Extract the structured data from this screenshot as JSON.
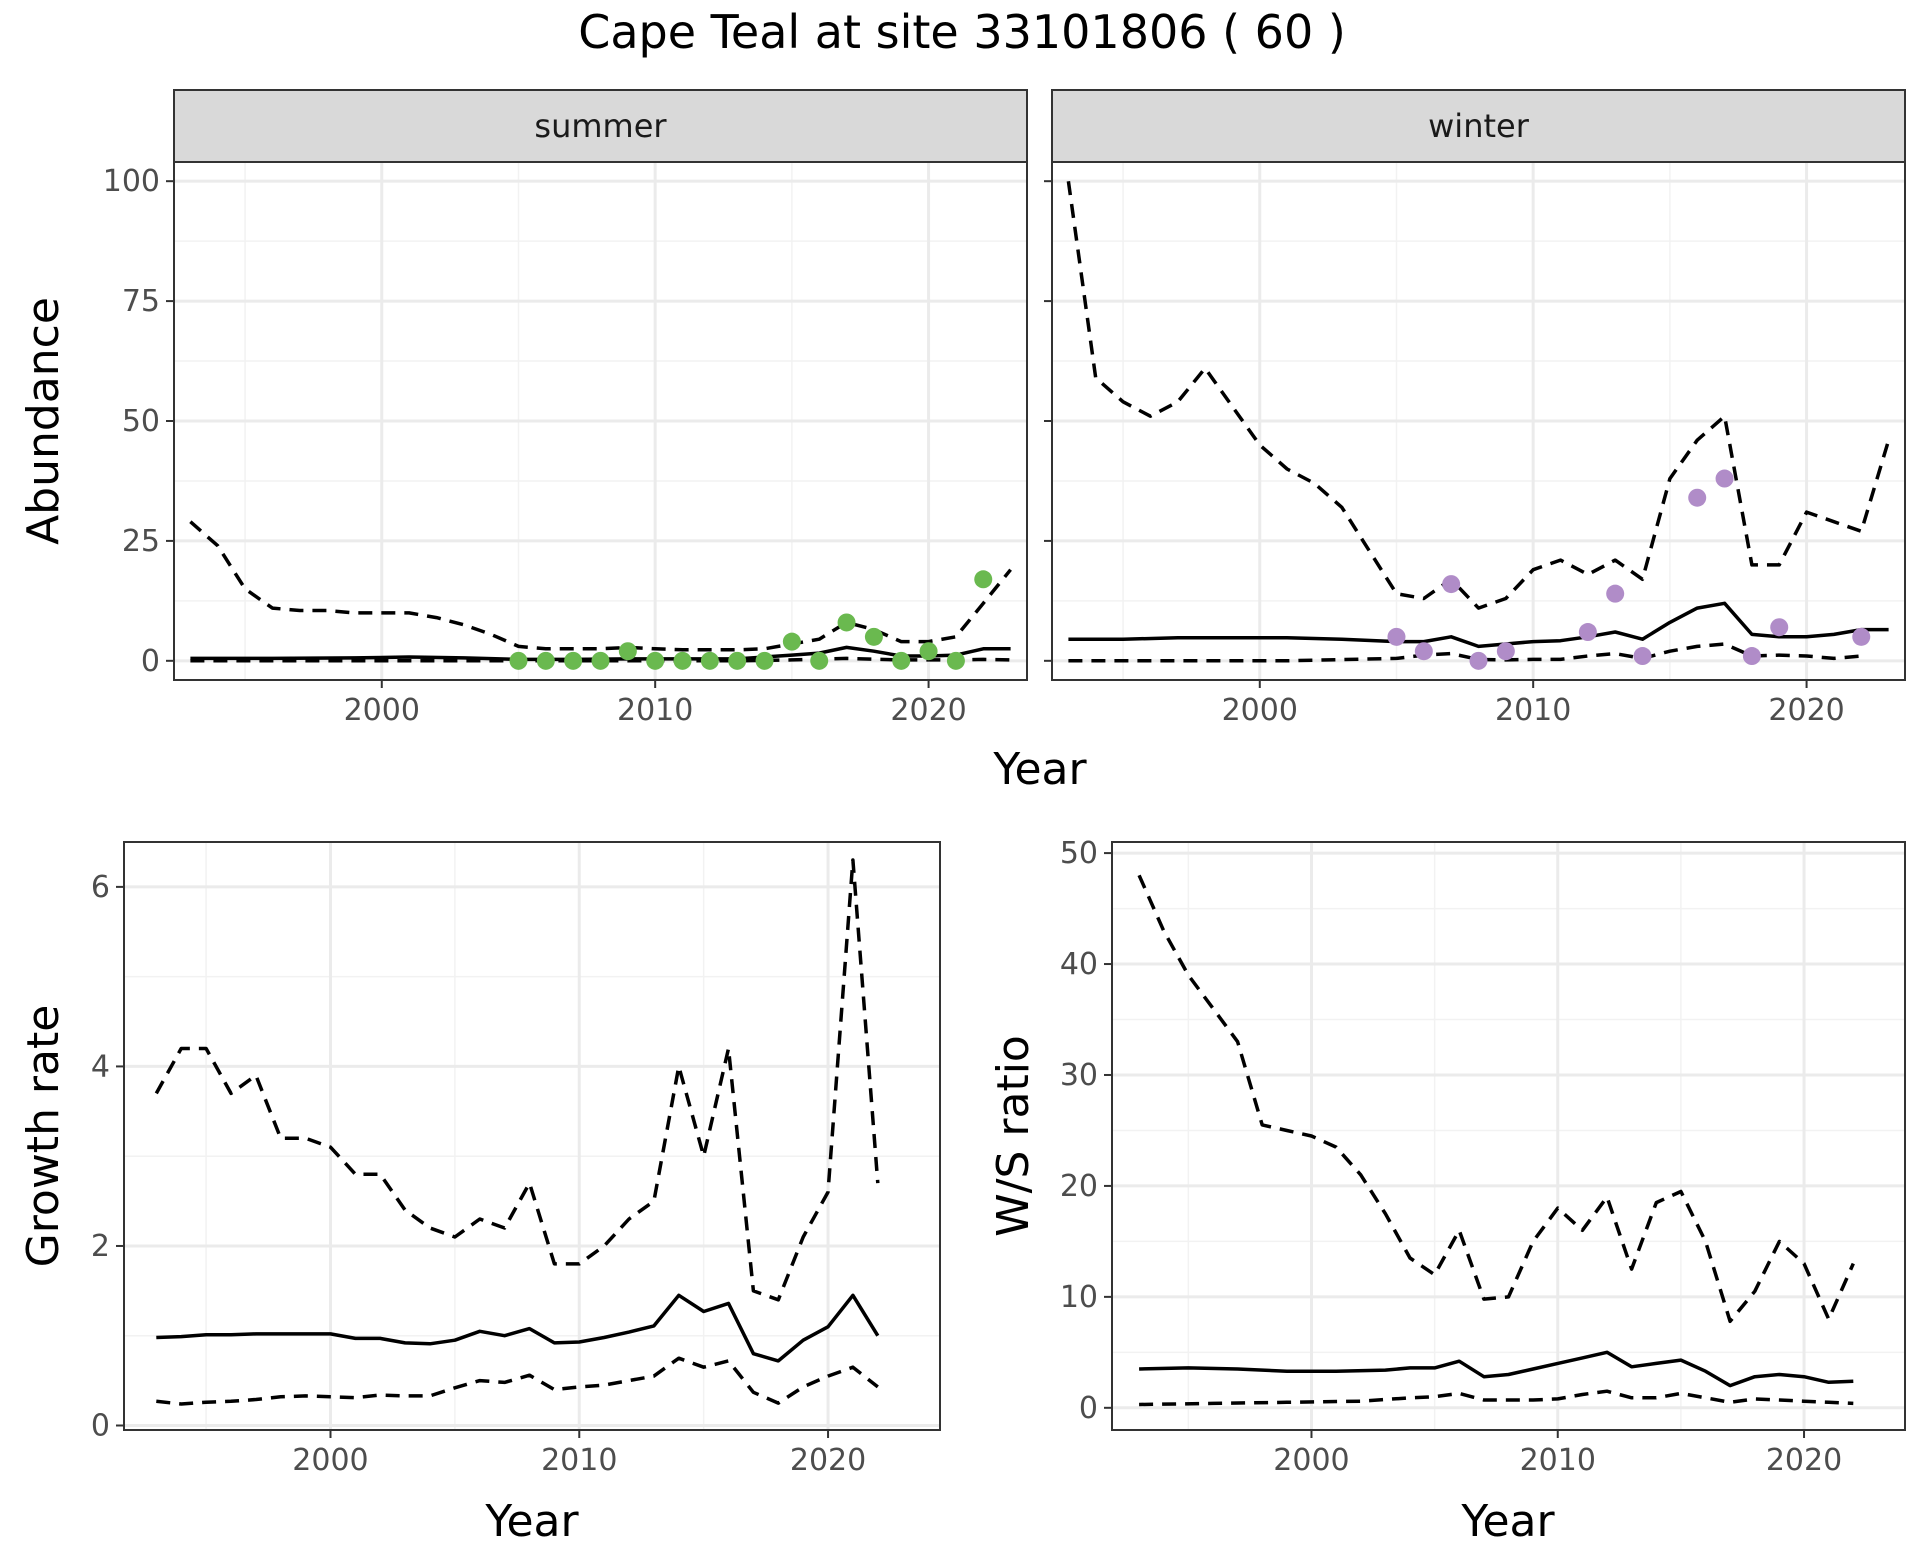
{
  "title": "Cape Teal at site 33101806 ( 60 )",
  "colors": {
    "summer_points": "#6ab94f",
    "winter_points": "#b08cc8",
    "strip_fill": "#d9d9d9"
  },
  "chart_data": [
    {
      "type": "line",
      "facet": "summer",
      "xlabel": "Year",
      "ylabel": "Abundance",
      "xlim": [
        1992.4,
        2023.6
      ],
      "ylim": [
        -4,
        104
      ],
      "xticks": [
        2000,
        2010,
        2020
      ],
      "yticks": [
        0,
        25,
        50,
        75,
        100
      ],
      "tick_labels_x": [
        "2000",
        "2010",
        "2020"
      ],
      "tick_labels_y": [
        "0",
        "25",
        "50",
        "75",
        "100"
      ],
      "show_y_labels": true,
      "strip": "summer",
      "point_color": "#6ab94f",
      "series": [
        {
          "style": "dashed",
          "x": [
            1993,
            1994,
            1995,
            1996,
            1997,
            1998,
            1999,
            2000,
            2001,
            2002,
            2003,
            2004,
            2005,
            2006,
            2007,
            2008,
            2009,
            2010,
            2011,
            2012,
            2013,
            2014,
            2015,
            2016,
            2017,
            2018,
            2019,
            2020,
            2021,
            2022,
            2023
          ],
          "y": [
            29,
            24,
            15,
            11,
            10.5,
            10.5,
            10,
            10,
            10,
            9,
            7.5,
            5.5,
            3,
            2.5,
            2.5,
            2.5,
            2.8,
            2.5,
            2.3,
            2.3,
            2.3,
            2.5,
            3.5,
            4.5,
            8,
            6.5,
            4,
            4,
            5,
            12,
            19
          ]
        },
        {
          "style": "solid",
          "x": [
            1993,
            1996,
            1999,
            2001,
            2003,
            2005,
            2007,
            2009,
            2011,
            2013,
            2015,
            2016,
            2017,
            2018,
            2019,
            2020,
            2021,
            2022,
            2023
          ],
          "y": [
            0.5,
            0.5,
            0.6,
            0.8,
            0.6,
            0.3,
            0.3,
            0.4,
            0.4,
            0.4,
            1.2,
            1.6,
            2.8,
            2,
            1,
            1,
            1.2,
            2.5,
            2.5
          ]
        },
        {
          "style": "dashed",
          "x": [
            1993,
            1997,
            2001,
            2005,
            2009,
            2013,
            2015,
            2017,
            2019,
            2021,
            2022,
            2023
          ],
          "y": [
            0,
            0,
            0,
            0,
            0,
            0,
            0.2,
            0.5,
            0.2,
            0.2,
            0.3,
            0.2
          ]
        }
      ],
      "points": {
        "x": [
          2005,
          2006,
          2007,
          2008,
          2009,
          2010,
          2011,
          2012,
          2013,
          2014,
          2015,
          2016,
          2017,
          2018,
          2019,
          2020,
          2021,
          2022
        ],
        "y": [
          0,
          0,
          0,
          0,
          2,
          0,
          0,
          0,
          0,
          0,
          4,
          0,
          8,
          5,
          0,
          2,
          0,
          17
        ]
      }
    },
    {
      "type": "line",
      "facet": "winter",
      "xlabel": "Year",
      "ylabel": "Abundance",
      "xlim": [
        1992.4,
        2023.6
      ],
      "ylim": [
        -4,
        104
      ],
      "xticks": [
        2000,
        2010,
        2020
      ],
      "yticks": [
        0,
        25,
        50,
        75,
        100
      ],
      "tick_labels_x": [
        "2000",
        "2010",
        "2020"
      ],
      "tick_labels_y": [],
      "show_y_labels": false,
      "strip": "winter",
      "point_color": "#b08cc8",
      "series": [
        {
          "style": "dashed",
          "x": [
            1993,
            1994,
            1995,
            1996,
            1997,
            1998,
            1999,
            2000,
            2001,
            2002,
            2003,
            2004,
            2005,
            2006,
            2007,
            2008,
            2009,
            2010,
            2011,
            2012,
            2013,
            2014,
            2015,
            2016,
            2017,
            2018,
            2019,
            2020,
            2021,
            2022,
            2023
          ],
          "y": [
            100,
            59,
            54,
            51,
            54,
            61,
            53,
            45,
            40,
            37,
            32,
            23,
            14,
            13,
            17,
            11,
            13,
            19,
            21,
            18,
            21,
            17,
            38,
            46,
            51,
            20,
            20,
            31,
            29,
            27,
            46
          ]
        },
        {
          "style": "solid",
          "x": [
            1993,
            1995,
            1997,
            1999,
            2001,
            2003,
            2005,
            2006,
            2007,
            2008,
            2009,
            2010,
            2011,
            2012,
            2013,
            2014,
            2015,
            2016,
            2017,
            2018,
            2019,
            2020,
            2021,
            2022,
            2023
          ],
          "y": [
            4.5,
            4.5,
            4.8,
            4.8,
            4.8,
            4.5,
            4,
            4,
            5,
            3,
            3.5,
            4,
            4.2,
            5,
            6,
            4.5,
            8,
            11,
            12,
            5.5,
            5,
            5,
            5.5,
            6.5,
            6.5
          ]
        },
        {
          "style": "dashed",
          "x": [
            1993,
            1997,
            2001,
            2005,
            2006,
            2007,
            2008,
            2009,
            2010,
            2011,
            2012,
            2013,
            2014,
            2015,
            2016,
            2017,
            2018,
            2019,
            2020,
            2021,
            2022
          ],
          "y": [
            0,
            0,
            0,
            0.5,
            1.2,
            1.5,
            0.3,
            0.2,
            0.3,
            0.3,
            1,
            1.5,
            0.5,
            2,
            3,
            3.5,
            1,
            1.2,
            1,
            0.5,
            1
          ]
        }
      ],
      "points": {
        "x": [
          2005,
          2006,
          2007,
          2008,
          2009,
          2012,
          2013,
          2014,
          2016,
          2017,
          2018,
          2019,
          2022
        ],
        "y": [
          5,
          2,
          16,
          0,
          2,
          6,
          14,
          1,
          34,
          38,
          1,
          7,
          5
        ]
      }
    },
    {
      "type": "line",
      "xlabel": "Year",
      "ylabel": "Growth rate",
      "xlim": [
        1991.7,
        2024.5
      ],
      "ylim": [
        -0.05,
        6.5
      ],
      "xticks": [
        2000,
        2010,
        2020
      ],
      "yticks": [
        0,
        2,
        4,
        6
      ],
      "tick_labels_x": [
        "2000",
        "2010",
        "2020"
      ],
      "tick_labels_y": [
        "0",
        "2",
        "4",
        "6"
      ],
      "show_y_labels": true,
      "series": [
        {
          "style": "dashed",
          "x": [
            1993,
            1994,
            1995,
            1996,
            1997,
            1998,
            1999,
            2000,
            2001,
            2002,
            2003,
            2004,
            2005,
            2006,
            2007,
            2008,
            2009,
            2010,
            2011,
            2012,
            2013,
            2014,
            2015,
            2016,
            2017,
            2018,
            2019,
            2020,
            2021,
            2022
          ],
          "y": [
            3.7,
            4.2,
            4.2,
            3.7,
            3.9,
            3.2,
            3.2,
            3.1,
            2.8,
            2.8,
            2.4,
            2.2,
            2.1,
            2.3,
            2.2,
            2.7,
            1.8,
            1.8,
            2.0,
            2.3,
            2.5,
            4.0,
            3.0,
            4.2,
            1.5,
            1.4,
            2.1,
            2.6,
            6.3,
            2.7
          ]
        },
        {
          "style": "solid",
          "x": [
            1993,
            1994,
            1995,
            1996,
            1997,
            1998,
            1999,
            2000,
            2001,
            2002,
            2003,
            2004,
            2005,
            2006,
            2007,
            2008,
            2009,
            2010,
            2011,
            2012,
            2013,
            2014,
            2015,
            2016,
            2017,
            2018,
            2019,
            2020,
            2021,
            2022
          ],
          "y": [
            0.98,
            0.99,
            1.01,
            1.01,
            1.02,
            1.02,
            1.02,
            1.02,
            0.97,
            0.97,
            0.92,
            0.91,
            0.95,
            1.05,
            1.0,
            1.08,
            0.92,
            0.93,
            0.98,
            1.04,
            1.11,
            1.45,
            1.27,
            1.36,
            0.8,
            0.72,
            0.95,
            1.1,
            1.45,
            1.0
          ]
        },
        {
          "style": "dashed",
          "x": [
            1993,
            1994,
            1995,
            1996,
            1997,
            1998,
            1999,
            2000,
            2001,
            2002,
            2003,
            2004,
            2005,
            2006,
            2007,
            2008,
            2009,
            2010,
            2011,
            2012,
            2013,
            2014,
            2015,
            2016,
            2017,
            2018,
            2019,
            2020,
            2021,
            2022
          ],
          "y": [
            0.27,
            0.24,
            0.26,
            0.27,
            0.29,
            0.32,
            0.33,
            0.32,
            0.31,
            0.34,
            0.33,
            0.33,
            0.42,
            0.5,
            0.48,
            0.56,
            0.4,
            0.43,
            0.45,
            0.5,
            0.55,
            0.75,
            0.65,
            0.72,
            0.37,
            0.25,
            0.43,
            0.55,
            0.65,
            0.43
          ]
        }
      ]
    },
    {
      "type": "line",
      "xlabel": "Year",
      "ylabel": "W/S ratio",
      "xlim": [
        1991.9,
        2024.1
      ],
      "ylim": [
        -2,
        51
      ],
      "xticks": [
        2000,
        2010,
        2020
      ],
      "yticks": [
        0,
        10,
        20,
        30,
        40,
        50
      ],
      "tick_labels_x": [
        "2000",
        "2010",
        "2020"
      ],
      "tick_labels_y": [
        "0",
        "10",
        "20",
        "30",
        "40",
        "50"
      ],
      "show_y_labels": true,
      "series": [
        {
          "style": "dashed",
          "x": [
            1993,
            1994,
            1995,
            1996,
            1997,
            1998,
            1999,
            2000,
            2001,
            2002,
            2003,
            2004,
            2005,
            2006,
            2007,
            2008,
            2009,
            2010,
            2011,
            2012,
            2013,
            2014,
            2015,
            2016,
            2017,
            2018,
            2019,
            2020,
            2021,
            2022
          ],
          "y": [
            48,
            43,
            39,
            36,
            33,
            25.5,
            25,
            24.5,
            23.5,
            21,
            17.5,
            13.5,
            12,
            16,
            9.8,
            10,
            15,
            18,
            16,
            19,
            12.5,
            18.5,
            19.5,
            15,
            7.8,
            10.5,
            15,
            13,
            8,
            13
          ]
        },
        {
          "style": "solid",
          "x": [
            1993,
            1995,
            1997,
            1999,
            2001,
            2003,
            2004,
            2005,
            2006,
            2007,
            2008,
            2009,
            2010,
            2011,
            2012,
            2013,
            2014,
            2015,
            2016,
            2017,
            2018,
            2019,
            2020,
            2021,
            2022
          ],
          "y": [
            3.5,
            3.6,
            3.5,
            3.3,
            3.3,
            3.4,
            3.6,
            3.6,
            4.2,
            2.8,
            3,
            3.5,
            4,
            4.5,
            5,
            3.7,
            4,
            4.3,
            3.3,
            2,
            2.8,
            3,
            2.8,
            2.3,
            2.4
          ]
        },
        {
          "style": "dashed",
          "x": [
            1993,
            1996,
            1999,
            2002,
            2004,
            2005,
            2006,
            2007,
            2008,
            2009,
            2010,
            2011,
            2012,
            2013,
            2014,
            2015,
            2016,
            2017,
            2018,
            2019,
            2020,
            2021,
            2022
          ],
          "y": [
            0.3,
            0.4,
            0.5,
            0.6,
            0.9,
            1.0,
            1.3,
            0.7,
            0.7,
            0.7,
            0.8,
            1.2,
            1.5,
            0.9,
            0.9,
            1.3,
            0.9,
            0.5,
            0.8,
            0.7,
            0.6,
            0.5,
            0.4
          ]
        }
      ]
    }
  ]
}
